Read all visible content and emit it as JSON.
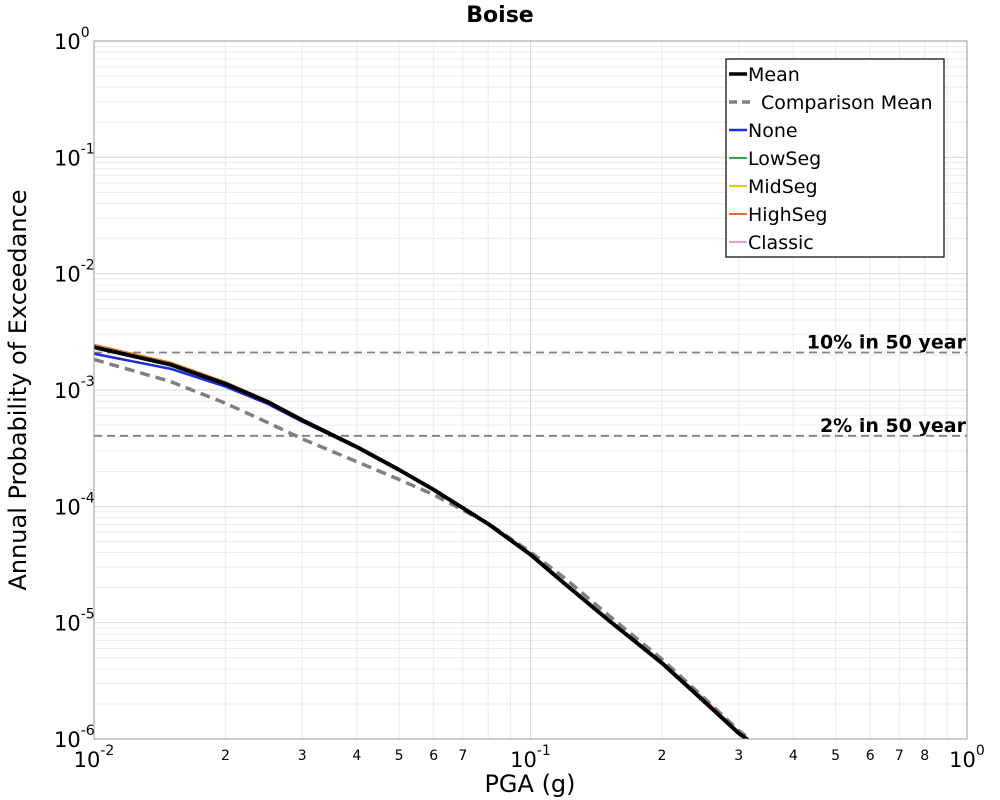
{
  "chart_data": {
    "type": "line",
    "title": "Boise",
    "xlabel": "PGA (g)",
    "ylabel": "Annual Probability of Exceedance",
    "x_scale": "log",
    "y_scale": "log",
    "xlim": [
      0.01,
      1.0
    ],
    "ylim": [
      1e-06,
      1.0
    ],
    "grid": true,
    "legend_position": "top-right",
    "x_major_ticks": [
      {
        "value": 0.01,
        "base": "10",
        "exp": "-2"
      },
      {
        "value": 0.1,
        "base": "10",
        "exp": "-1"
      },
      {
        "value": 1.0,
        "base": "10",
        "exp": "0"
      }
    ],
    "x_minor_ticks": [
      {
        "value": 0.02,
        "label": "2"
      },
      {
        "value": 0.03,
        "label": "3"
      },
      {
        "value": 0.04,
        "label": "4"
      },
      {
        "value": 0.05,
        "label": "5"
      },
      {
        "value": 0.06,
        "label": "6"
      },
      {
        "value": 0.07,
        "label": "7"
      },
      {
        "value": 0.2,
        "label": "2"
      },
      {
        "value": 0.3,
        "label": "3"
      },
      {
        "value": 0.4,
        "label": "4"
      },
      {
        "value": 0.5,
        "label": "5"
      },
      {
        "value": 0.6,
        "label": "6"
      },
      {
        "value": 0.7,
        "label": "7"
      },
      {
        "value": 0.8,
        "label": "8"
      }
    ],
    "y_major_ticks": [
      {
        "value": 1.0,
        "base": "10",
        "exp": "0"
      },
      {
        "value": 0.1,
        "base": "10",
        "exp": "-1"
      },
      {
        "value": 0.01,
        "base": "10",
        "exp": "-2"
      },
      {
        "value": 0.001,
        "base": "10",
        "exp": "-3"
      },
      {
        "value": 0.0001,
        "base": "10",
        "exp": "-4"
      },
      {
        "value": 1e-05,
        "base": "10",
        "exp": "-5"
      },
      {
        "value": 1e-06,
        "base": "10",
        "exp": "-6"
      }
    ],
    "reference_lines": [
      {
        "label": "10% in 50 year",
        "y": 0.0021,
        "color": "#808080"
      },
      {
        "label": "2% in 50 year",
        "y": 0.000404,
        "color": "#808080"
      }
    ],
    "series": [
      {
        "name": "Mean",
        "color": "#000000",
        "width": 4,
        "dash": "",
        "x": [
          0.01,
          0.015,
          0.02,
          0.025,
          0.03,
          0.04,
          0.05,
          0.06,
          0.08,
          0.1,
          0.12,
          0.15,
          0.2,
          0.25,
          0.3,
          0.315
        ],
        "y": [
          0.00233,
          0.00165,
          0.00113,
          0.00079,
          0.00055,
          0.000324,
          0.000206,
          0.000139,
          7.06e-05,
          3.85e-05,
          2.15e-05,
          1.07e-05,
          4.5e-06,
          2.1e-06,
          1.12e-06,
          9.8e-07
        ]
      },
      {
        "name": "Comparison Mean",
        "color": "#808080",
        "width": 3.5,
        "dash": "10,6",
        "x": [
          0.01,
          0.015,
          0.02,
          0.025,
          0.03,
          0.04,
          0.05,
          0.06,
          0.08,
          0.1,
          0.12,
          0.15,
          0.2,
          0.25,
          0.3,
          0.315
        ],
        "y": [
          0.00183,
          0.00118,
          0.00077,
          0.000525,
          0.00038,
          0.000242,
          0.00017,
          0.000126,
          7.12e-05,
          4.05e-05,
          2.4e-05,
          1.18e-05,
          4.85e-06,
          2.25e-06,
          1.18e-06,
          1.03e-06
        ]
      },
      {
        "name": "None",
        "color": "#1a2ddb",
        "width": 2.5,
        "dash": "",
        "x": [
          0.01,
          0.015,
          0.02,
          0.025,
          0.03,
          0.04,
          0.05,
          0.06,
          0.08,
          0.1,
          0.12,
          0.15,
          0.2,
          0.25,
          0.3,
          0.315
        ],
        "y": [
          0.00205,
          0.00152,
          0.00107,
          0.00076,
          0.000535,
          0.00032,
          0.000205,
          0.000139,
          7.06e-05,
          3.85e-05,
          2.15e-05,
          1.07e-05,
          4.5e-06,
          2.1e-06,
          1.12e-06,
          9.8e-07
        ]
      },
      {
        "name": "LowSeg",
        "color": "#3aa53a",
        "width": 2,
        "dash": "",
        "x": [
          0.01,
          0.015,
          0.02,
          0.025,
          0.03,
          0.04,
          0.05,
          0.06,
          0.08,
          0.1,
          0.12,
          0.15,
          0.2,
          0.25,
          0.3,
          0.315
        ],
        "y": [
          0.00238,
          0.00168,
          0.00114,
          0.00079,
          0.00055,
          0.000325,
          0.000206,
          0.000139,
          7.06e-05,
          3.85e-05,
          2.15e-05,
          1.07e-05,
          4.5e-06,
          2.1e-06,
          1.12e-06,
          9.8e-07
        ]
      },
      {
        "name": "MidSeg",
        "color": "#e8c814",
        "width": 2,
        "dash": "",
        "x": [
          0.01,
          0.015,
          0.02,
          0.025,
          0.03,
          0.04,
          0.05,
          0.06,
          0.08,
          0.1,
          0.12,
          0.15,
          0.2,
          0.25,
          0.3,
          0.315
        ],
        "y": [
          0.0024,
          0.00169,
          0.00115,
          0.0008,
          0.00056,
          0.000326,
          0.000207,
          0.000139,
          7.06e-05,
          3.85e-05,
          2.15e-05,
          1.07e-05,
          4.5e-06,
          2.1e-06,
          1.12e-06,
          9.8e-07
        ]
      },
      {
        "name": "HighSeg",
        "color": "#ee6a1c",
        "width": 2,
        "dash": "",
        "x": [
          0.01,
          0.015,
          0.02,
          0.025,
          0.03,
          0.04,
          0.05,
          0.06,
          0.08,
          0.1,
          0.12,
          0.15,
          0.2,
          0.25,
          0.3,
          0.315
        ],
        "y": [
          0.00245,
          0.00172,
          0.00117,
          0.00081,
          0.00056,
          0.000327,
          0.000207,
          0.00014,
          7.1e-05,
          3.87e-05,
          2.17e-05,
          1.08e-05,
          4.6e-06,
          2.2e-06,
          1.15e-06,
          1e-06
        ]
      },
      {
        "name": "Classic",
        "color": "#e79ee0",
        "width": 2,
        "dash": "",
        "x": [
          0.01,
          0.015,
          0.02,
          0.025,
          0.03,
          0.04,
          0.05,
          0.06,
          0.08,
          0.1,
          0.12,
          0.15,
          0.2,
          0.25,
          0.3,
          0.315
        ],
        "y": [
          0.00235,
          0.00166,
          0.00113,
          0.00079,
          0.00055,
          0.000324,
          0.000206,
          0.000139,
          7.06e-05,
          3.85e-05,
          2.15e-05,
          1.07e-05,
          4.5e-06,
          2.1e-06,
          1.12e-06,
          9.8e-07
        ]
      }
    ]
  }
}
